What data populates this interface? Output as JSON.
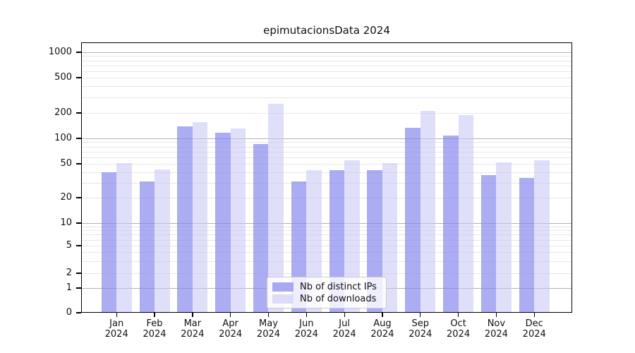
{
  "title": "epimutacionsData 2024",
  "chart_data": {
    "type": "bar",
    "title": "epimutacionsData 2024",
    "xlabel": "",
    "ylabel": "",
    "yscale": "symlog",
    "grid": true,
    "legend_position": "lower center",
    "categories": [
      "Jan 2024",
      "Feb 2024",
      "Mar 2024",
      "Apr 2024",
      "May 2024",
      "Jun 2024",
      "Jul 2024",
      "Aug 2024",
      "Sep 2024",
      "Oct 2024",
      "Nov 2024",
      "Dec 2024"
    ],
    "x_tick_months": [
      "Jan",
      "Feb",
      "Mar",
      "Apr",
      "May",
      "Jun",
      "Jul",
      "Aug",
      "Sep",
      "Oct",
      "Nov",
      "Dec"
    ],
    "x_tick_year": "2024",
    "ytick_values": [
      0,
      1,
      2,
      5,
      10,
      20,
      50,
      100,
      200,
      500,
      1000
    ],
    "series": [
      {
        "name": "Nb of distinct IPs",
        "color": "#a9a9f1",
        "fill": "rgba(132,132,237,0.68)",
        "values": [
          40,
          31,
          140,
          117,
          86,
          31,
          42,
          42,
          133,
          108,
          37,
          34
        ]
      },
      {
        "name": "Nb of downloads",
        "color": "#dcdcf9",
        "fill": "rgba(196,196,246,0.55)",
        "values": [
          51,
          43,
          155,
          130,
          255,
          42,
          55,
          51,
          210,
          190,
          52,
          55
        ]
      }
    ]
  }
}
